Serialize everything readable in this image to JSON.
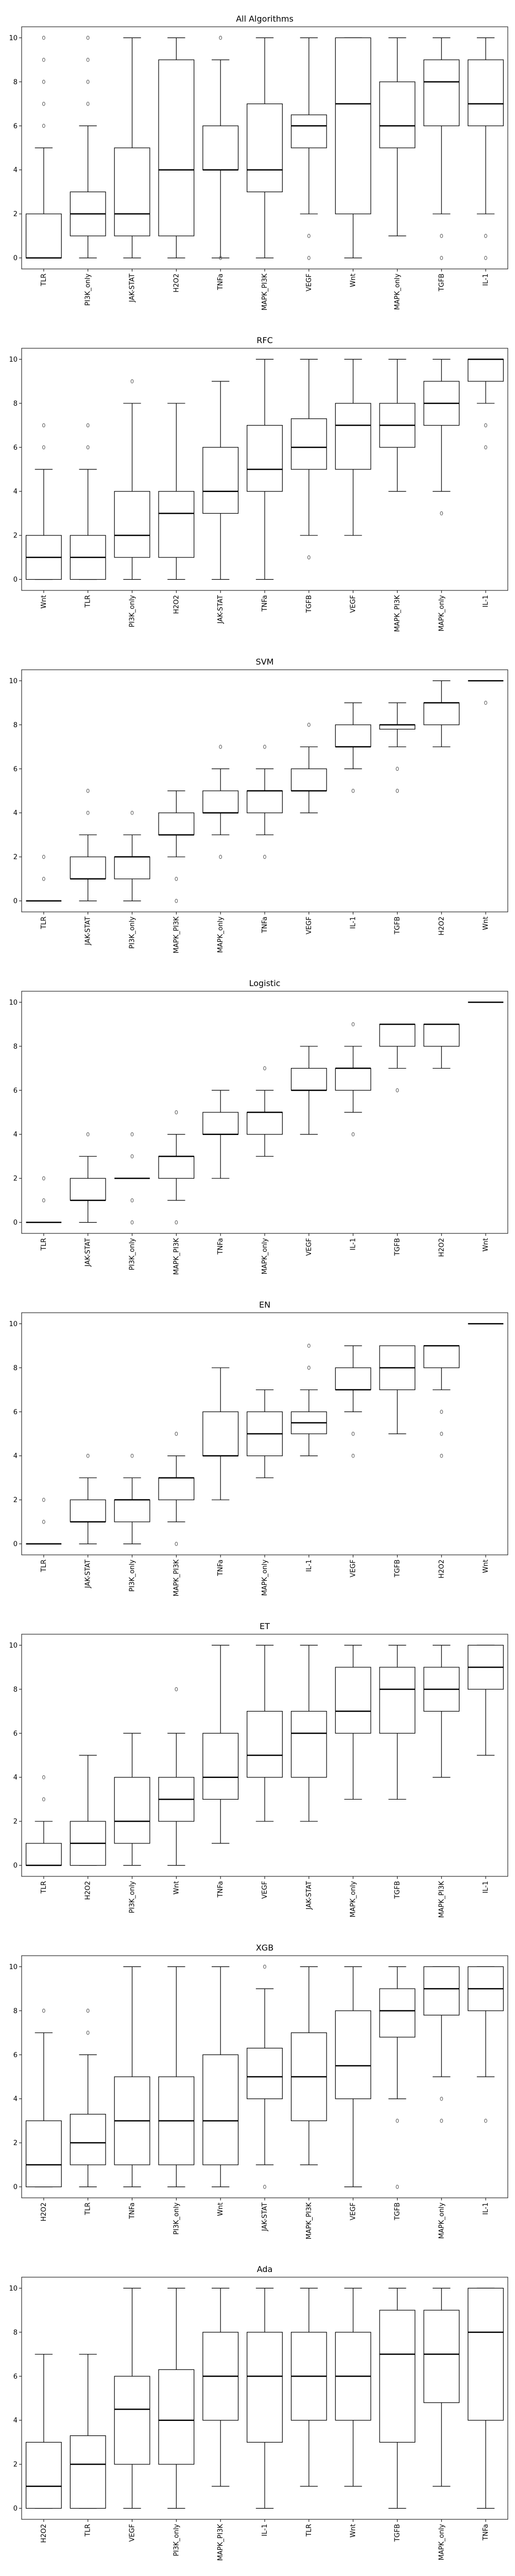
{
  "chart_data": [
    {
      "type": "box",
      "title": "All Algorithms",
      "xlabel": "",
      "ylabel": "",
      "ylim": [
        -0.5,
        10.5
      ],
      "yticks": [
        0,
        2,
        4,
        6,
        8,
        10
      ],
      "boxes": [
        {
          "label": "TLR",
          "whislo": 0,
          "q1": 0,
          "med": 0,
          "q3": 2,
          "whishi": 5,
          "fliers": [
            6,
            7,
            8,
            9,
            10
          ]
        },
        {
          "label": "PI3K_only",
          "whislo": 0,
          "q1": 1,
          "med": 2,
          "q3": 3,
          "whishi": 6,
          "fliers": [
            7,
            8,
            9,
            10
          ]
        },
        {
          "label": "JAK-STAT",
          "whislo": 0,
          "q1": 1,
          "med": 2,
          "q3": 5,
          "whishi": 10,
          "fliers": []
        },
        {
          "label": "H2O2",
          "whislo": 0,
          "q1": 1,
          "med": 4,
          "q3": 9,
          "whishi": 10,
          "fliers": []
        },
        {
          "label": "TNFa",
          "whislo": 0,
          "q1": 4,
          "med": 4,
          "q3": 6,
          "whishi": 9,
          "fliers": [
            0,
            10
          ]
        },
        {
          "label": "MAPK_PI3K",
          "whislo": 0,
          "q1": 3,
          "med": 4,
          "q3": 7,
          "whishi": 10,
          "fliers": []
        },
        {
          "label": "VEGF",
          "whislo": 2,
          "q1": 5,
          "med": 6,
          "q3": 6.5,
          "whishi": 10,
          "fliers": [
            0,
            1
          ]
        },
        {
          "label": "Wnt",
          "whislo": 0,
          "q1": 2,
          "med": 7,
          "q3": 10,
          "whishi": 10,
          "fliers": []
        },
        {
          "label": "MAPK_only",
          "whislo": 1,
          "q1": 5,
          "med": 6,
          "q3": 8,
          "whishi": 10,
          "fliers": []
        },
        {
          "label": "TGFB",
          "whislo": 2,
          "q1": 6,
          "med": 8,
          "q3": 9,
          "whishi": 10,
          "fliers": [
            0,
            1
          ]
        },
        {
          "label": "IL-1",
          "whislo": 2,
          "q1": 6,
          "med": 7,
          "q3": 9,
          "whishi": 10,
          "fliers": [
            0,
            1
          ]
        }
      ]
    },
    {
      "type": "box",
      "title": "RFC",
      "xlabel": "",
      "ylabel": "",
      "ylim": [
        -0.5,
        10.5
      ],
      "yticks": [
        0,
        2,
        4,
        6,
        8,
        10
      ],
      "boxes": [
        {
          "label": "Wnt",
          "whislo": 0,
          "q1": 0,
          "med": 1,
          "q3": 2,
          "whishi": 5,
          "fliers": [
            6,
            7
          ]
        },
        {
          "label": "TLR",
          "whislo": 0,
          "q1": 0,
          "med": 1,
          "q3": 2,
          "whishi": 5,
          "fliers": [
            6,
            7
          ]
        },
        {
          "label": "PI3K_only",
          "whislo": 0,
          "q1": 1,
          "med": 2,
          "q3": 4,
          "whishi": 8,
          "fliers": [
            9
          ]
        },
        {
          "label": "H2O2",
          "whislo": 0,
          "q1": 1,
          "med": 3,
          "q3": 4,
          "whishi": 8,
          "fliers": []
        },
        {
          "label": "JAK-STAT",
          "whislo": 0,
          "q1": 3,
          "med": 4,
          "q3": 6,
          "whishi": 9,
          "fliers": []
        },
        {
          "label": "TNFa",
          "whislo": 0,
          "q1": 4,
          "med": 5,
          "q3": 7,
          "whishi": 10,
          "fliers": []
        },
        {
          "label": "TGFB",
          "whislo": 2,
          "q1": 5,
          "med": 6,
          "q3": 7.3,
          "whishi": 10,
          "fliers": [
            1
          ]
        },
        {
          "label": "VEGF",
          "whislo": 2,
          "q1": 5,
          "med": 7,
          "q3": 8,
          "whishi": 10,
          "fliers": []
        },
        {
          "label": "MAPK_PI3K",
          "whislo": 4,
          "q1": 6,
          "med": 7,
          "q3": 8,
          "whishi": 10,
          "fliers": []
        },
        {
          "label": "MAPK_only",
          "whislo": 4,
          "q1": 7,
          "med": 8,
          "q3": 9,
          "whishi": 10,
          "fliers": [
            3
          ]
        },
        {
          "label": "IL-1",
          "whislo": 8,
          "q1": 9,
          "med": 10,
          "q3": 10,
          "whishi": 10,
          "fliers": [
            6,
            7
          ]
        }
      ]
    },
    {
      "type": "box",
      "title": "SVM",
      "xlabel": "",
      "ylabel": "",
      "ylim": [
        -0.5,
        10.5
      ],
      "yticks": [
        0,
        2,
        4,
        6,
        8,
        10
      ],
      "boxes": [
        {
          "label": "TLR",
          "whislo": 0,
          "q1": 0,
          "med": 0,
          "q3": 0,
          "whishi": 0,
          "fliers": [
            1,
            2
          ]
        },
        {
          "label": "JAK-STAT",
          "whislo": 0,
          "q1": 1,
          "med": 1,
          "q3": 2,
          "whishi": 3,
          "fliers": [
            4,
            5
          ]
        },
        {
          "label": "PI3K_only",
          "whislo": 0,
          "q1": 1,
          "med": 2,
          "q3": 2,
          "whishi": 3,
          "fliers": [
            4
          ]
        },
        {
          "label": "MAPK_PI3K",
          "whislo": 2,
          "q1": 3,
          "med": 3,
          "q3": 4,
          "whishi": 5,
          "fliers": [
            0,
            1
          ]
        },
        {
          "label": "MAPK_only",
          "whislo": 3,
          "q1": 4,
          "med": 4,
          "q3": 5,
          "whishi": 6,
          "fliers": [
            2,
            7
          ]
        },
        {
          "label": "TNFa",
          "whislo": 3,
          "q1": 4,
          "med": 5,
          "q3": 5,
          "whishi": 6,
          "fliers": [
            2,
            7
          ]
        },
        {
          "label": "VEGF",
          "whislo": 4,
          "q1": 5,
          "med": 5,
          "q3": 6,
          "whishi": 7,
          "fliers": [
            8
          ]
        },
        {
          "label": "IL-1",
          "whislo": 6,
          "q1": 7,
          "med": 7,
          "q3": 8,
          "whishi": 9,
          "fliers": [
            5
          ]
        },
        {
          "label": "TGFB",
          "whislo": 7,
          "q1": 7.8,
          "med": 8,
          "q3": 8,
          "whishi": 9,
          "fliers": [
            5,
            6
          ]
        },
        {
          "label": "H2O2",
          "whislo": 7,
          "q1": 8,
          "med": 9,
          "q3": 9,
          "whishi": 10,
          "fliers": []
        },
        {
          "label": "Wnt",
          "whislo": 10,
          "q1": 10,
          "med": 10,
          "q3": 10,
          "whishi": 10,
          "fliers": [
            9
          ]
        }
      ]
    },
    {
      "type": "box",
      "title": "Logistic",
      "xlabel": "",
      "ylabel": "",
      "ylim": [
        -0.5,
        10.5
      ],
      "yticks": [
        0,
        2,
        4,
        6,
        8,
        10
      ],
      "boxes": [
        {
          "label": "TLR",
          "whislo": 0,
          "q1": 0,
          "med": 0,
          "q3": 0,
          "whishi": 0,
          "fliers": [
            1,
            2
          ]
        },
        {
          "label": "JAK-STAT",
          "whislo": 0,
          "q1": 1,
          "med": 1,
          "q3": 2,
          "whishi": 3,
          "fliers": [
            4
          ]
        },
        {
          "label": "PI3K_only",
          "whislo": 2,
          "q1": 2,
          "med": 2,
          "q3": 2,
          "whishi": 2,
          "fliers": [
            0,
            1,
            3,
            4
          ]
        },
        {
          "label": "MAPK_PI3K",
          "whislo": 1,
          "q1": 2,
          "med": 3,
          "q3": 3,
          "whishi": 4,
          "fliers": [
            0,
            5
          ]
        },
        {
          "label": "TNFa",
          "whislo": 2,
          "q1": 4,
          "med": 4,
          "q3": 5,
          "whishi": 6,
          "fliers": []
        },
        {
          "label": "MAPK_only",
          "whislo": 3,
          "q1": 4,
          "med": 5,
          "q3": 5,
          "whishi": 6,
          "fliers": [
            7
          ]
        },
        {
          "label": "VEGF",
          "whislo": 4,
          "q1": 6,
          "med": 6,
          "q3": 7,
          "whishi": 8,
          "fliers": []
        },
        {
          "label": "IL-1",
          "whislo": 5,
          "q1": 6,
          "med": 7,
          "q3": 7,
          "whishi": 8,
          "fliers": [
            4,
            9
          ]
        },
        {
          "label": "TGFB",
          "whislo": 7,
          "q1": 8,
          "med": 9,
          "q3": 9,
          "whishi": 9,
          "fliers": [
            6
          ]
        },
        {
          "label": "H2O2",
          "whislo": 7,
          "q1": 8,
          "med": 9,
          "q3": 9,
          "whishi": 9,
          "fliers": []
        },
        {
          "label": "Wnt",
          "whislo": 10,
          "q1": 10,
          "med": 10,
          "q3": 10,
          "whishi": 10,
          "fliers": []
        }
      ]
    },
    {
      "type": "box",
      "title": "EN",
      "xlabel": "",
      "ylabel": "",
      "ylim": [
        -0.5,
        10.5
      ],
      "yticks": [
        0,
        2,
        4,
        6,
        8,
        10
      ],
      "boxes": [
        {
          "label": "TLR",
          "whislo": 0,
          "q1": 0,
          "med": 0,
          "q3": 0,
          "whishi": 0,
          "fliers": [
            1,
            2
          ]
        },
        {
          "label": "JAK-STAT",
          "whislo": 0,
          "q1": 1,
          "med": 1,
          "q3": 2,
          "whishi": 3,
          "fliers": [
            4
          ]
        },
        {
          "label": "PI3K_only",
          "whislo": 0,
          "q1": 1,
          "med": 2,
          "q3": 2,
          "whishi": 3,
          "fliers": [
            4
          ]
        },
        {
          "label": "MAPK_PI3K",
          "whislo": 1,
          "q1": 2,
          "med": 3,
          "q3": 3,
          "whishi": 4,
          "fliers": [
            0,
            5
          ]
        },
        {
          "label": "TNFa",
          "whislo": 2,
          "q1": 4,
          "med": 4,
          "q3": 6,
          "whishi": 8,
          "fliers": []
        },
        {
          "label": "MAPK_only",
          "whislo": 3,
          "q1": 4,
          "med": 5,
          "q3": 6,
          "whishi": 7,
          "fliers": []
        },
        {
          "label": "IL-1",
          "whislo": 4,
          "q1": 5,
          "med": 5.5,
          "q3": 6,
          "whishi": 7,
          "fliers": [
            8,
            9
          ]
        },
        {
          "label": "VEGF",
          "whislo": 6,
          "q1": 7,
          "med": 7,
          "q3": 8,
          "whishi": 9,
          "fliers": [
            4,
            5
          ]
        },
        {
          "label": "TGFB",
          "whislo": 5,
          "q1": 7,
          "med": 8,
          "q3": 9,
          "whishi": 9,
          "fliers": []
        },
        {
          "label": "H2O2",
          "whislo": 7,
          "q1": 8,
          "med": 9,
          "q3": 9,
          "whishi": 9,
          "fliers": [
            4,
            5,
            6
          ]
        },
        {
          "label": "Wnt",
          "whislo": 10,
          "q1": 10,
          "med": 10,
          "q3": 10,
          "whishi": 10,
          "fliers": []
        }
      ]
    },
    {
      "type": "box",
      "title": "ET",
      "xlabel": "",
      "ylabel": "",
      "ylim": [
        -0.5,
        10.5
      ],
      "yticks": [
        0,
        2,
        4,
        6,
        8,
        10
      ],
      "boxes": [
        {
          "label": "TLR",
          "whislo": 0,
          "q1": 0,
          "med": 0,
          "q3": 1,
          "whishi": 2,
          "fliers": [
            3,
            4
          ]
        },
        {
          "label": "H2O2",
          "whislo": 0,
          "q1": 0,
          "med": 1,
          "q3": 2,
          "whishi": 5,
          "fliers": []
        },
        {
          "label": "PI3K_only",
          "whislo": 0,
          "q1": 1,
          "med": 2,
          "q3": 4,
          "whishi": 6,
          "fliers": []
        },
        {
          "label": "Wnt",
          "whislo": 0,
          "q1": 2,
          "med": 3,
          "q3": 4,
          "whishi": 6,
          "fliers": [
            8
          ]
        },
        {
          "label": "TNFa",
          "whislo": 1,
          "q1": 3,
          "med": 4,
          "q3": 6,
          "whishi": 10,
          "fliers": []
        },
        {
          "label": "VEGF",
          "whislo": 2,
          "q1": 4,
          "med": 5,
          "q3": 7,
          "whishi": 10,
          "fliers": []
        },
        {
          "label": "JAK-STAT",
          "whislo": 2,
          "q1": 4,
          "med": 6,
          "q3": 7,
          "whishi": 10,
          "fliers": []
        },
        {
          "label": "MAPK_only",
          "whislo": 3,
          "q1": 6,
          "med": 7,
          "q3": 9,
          "whishi": 10,
          "fliers": []
        },
        {
          "label": "TGFB",
          "whislo": 3,
          "q1": 6,
          "med": 8,
          "q3": 9,
          "whishi": 10,
          "fliers": []
        },
        {
          "label": "MAPK_PI3K",
          "whislo": 4,
          "q1": 7,
          "med": 8,
          "q3": 9,
          "whishi": 10,
          "fliers": []
        },
        {
          "label": "IL-1",
          "whislo": 5,
          "q1": 8,
          "med": 9,
          "q3": 10,
          "whishi": 10,
          "fliers": []
        }
      ]
    },
    {
      "type": "box",
      "title": "XGB",
      "xlabel": "",
      "ylabel": "",
      "ylim": [
        -0.5,
        10.5
      ],
      "yticks": [
        0,
        2,
        4,
        6,
        8,
        10
      ],
      "boxes": [
        {
          "label": "H2O2",
          "whislo": 0,
          "q1": 0,
          "med": 1,
          "q3": 3,
          "whishi": 7,
          "fliers": [
            8
          ]
        },
        {
          "label": "TLR",
          "whislo": 0,
          "q1": 1,
          "med": 2,
          "q3": 3.3,
          "whishi": 6,
          "fliers": [
            7,
            8
          ]
        },
        {
          "label": "TNFa",
          "whislo": 0,
          "q1": 1,
          "med": 3,
          "q3": 5,
          "whishi": 10,
          "fliers": []
        },
        {
          "label": "PI3K_only",
          "whislo": 0,
          "q1": 1,
          "med": 3,
          "q3": 5,
          "whishi": 10,
          "fliers": []
        },
        {
          "label": "Wnt",
          "whislo": 0,
          "q1": 1,
          "med": 3,
          "q3": 6,
          "whishi": 10,
          "fliers": []
        },
        {
          "label": "JAK-STAT",
          "whislo": 1,
          "q1": 4,
          "med": 5,
          "q3": 6.3,
          "whishi": 9,
          "fliers": [
            0,
            10
          ]
        },
        {
          "label": "MAPK_PI3K",
          "whislo": 1,
          "q1": 3,
          "med": 5,
          "q3": 7,
          "whishi": 10,
          "fliers": []
        },
        {
          "label": "VEGF",
          "whislo": 0,
          "q1": 4,
          "med": 5.5,
          "q3": 8,
          "whishi": 10,
          "fliers": []
        },
        {
          "label": "TGFB",
          "whislo": 4,
          "q1": 6.8,
          "med": 8,
          "q3": 9,
          "whishi": 10,
          "fliers": [
            0,
            3
          ]
        },
        {
          "label": "MAPK_only",
          "whislo": 5,
          "q1": 7.8,
          "med": 9,
          "q3": 10,
          "whishi": 10,
          "fliers": [
            3,
            4
          ]
        },
        {
          "label": "IL-1",
          "whislo": 5,
          "q1": 8,
          "med": 9,
          "q3": 10,
          "whishi": 10,
          "fliers": [
            3
          ]
        }
      ]
    },
    {
      "type": "box",
      "title": "Ada",
      "xlabel": "",
      "ylabel": "",
      "ylim": [
        -0.5,
        10.5
      ],
      "yticks": [
        0,
        2,
        4,
        6,
        8,
        10
      ],
      "boxes": [
        {
          "label": "H2O2",
          "whislo": 0,
          "q1": 0,
          "med": 1,
          "q3": 3,
          "whishi": 7,
          "fliers": []
        },
        {
          "label": "TLR",
          "whislo": 0,
          "q1": 0,
          "med": 2,
          "q3": 3.3,
          "whishi": 7,
          "fliers": []
        },
        {
          "label": "VEGF",
          "whislo": 0,
          "q1": 2,
          "med": 4.5,
          "q3": 6,
          "whishi": 10,
          "fliers": []
        },
        {
          "label": "PI3K_only",
          "whislo": 0,
          "q1": 2,
          "med": 4,
          "q3": 6.3,
          "whishi": 10,
          "fliers": []
        },
        {
          "label": "MAPK_PI3K",
          "whislo": 1,
          "q1": 4,
          "med": 6,
          "q3": 8,
          "whishi": 10,
          "fliers": []
        },
        {
          "label": "IL-1",
          "whislo": 0,
          "q1": 3,
          "med": 6,
          "q3": 8,
          "whishi": 10,
          "fliers": []
        },
        {
          "label": "TLR",
          "whislo": 1,
          "q1": 4,
          "med": 6,
          "q3": 8,
          "whishi": 10,
          "fliers": []
        },
        {
          "label": "Wnt",
          "whislo": 1,
          "q1": 4,
          "med": 6,
          "q3": 8,
          "whishi": 10,
          "fliers": []
        },
        {
          "label": "TGFB",
          "whislo": 0,
          "q1": 3,
          "med": 7,
          "q3": 9,
          "whishi": 10,
          "fliers": []
        },
        {
          "label": "MAPK_only",
          "whislo": 1,
          "q1": 4.8,
          "med": 7,
          "q3": 9,
          "whishi": 10,
          "fliers": []
        },
        {
          "label": "TNFa",
          "whislo": 0,
          "q1": 4,
          "med": 8,
          "q3": 10,
          "whishi": 10,
          "fliers": []
        }
      ]
    }
  ]
}
